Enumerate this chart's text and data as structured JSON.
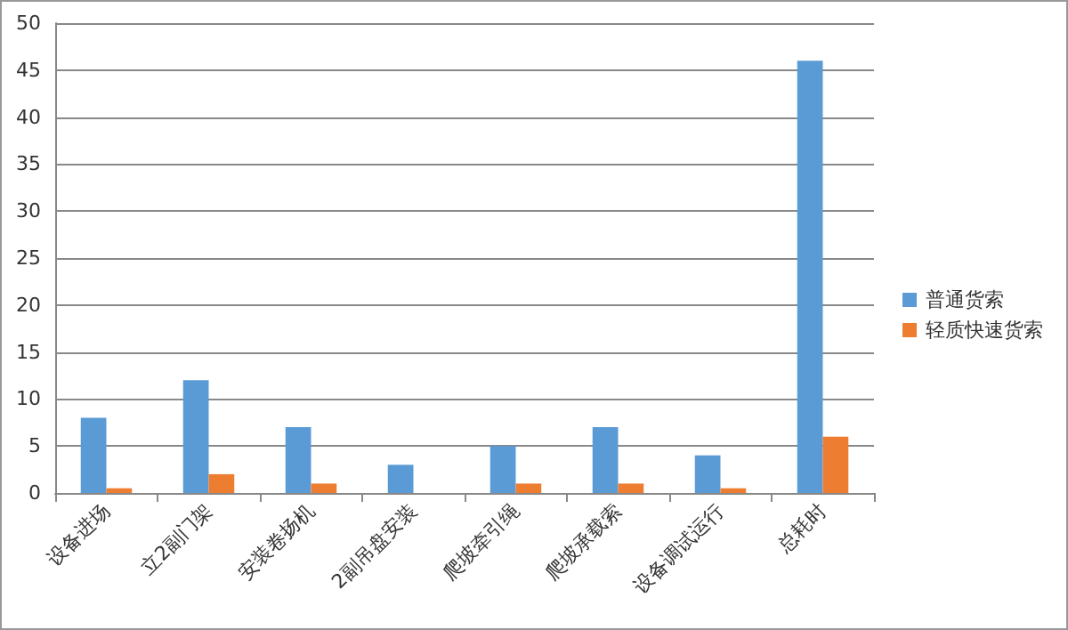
{
  "chart_data": {
    "type": "bar",
    "categories": [
      "设备进场",
      "立2副门架",
      "安装卷扬机",
      "2副吊盘安装",
      "爬坡牵引绳",
      "爬坡承载索",
      "设备调试运行",
      "总耗时"
    ],
    "series": [
      {
        "name": "普通货索",
        "color": "#5b9bd5",
        "values": [
          8,
          12,
          7,
          3,
          5,
          7,
          4,
          46
        ]
      },
      {
        "name": "轻质快速货索",
        "color": "#ed7d31",
        "values": [
          0.5,
          2,
          1,
          0,
          1,
          1,
          0.5,
          6
        ]
      }
    ],
    "ylim": [
      0,
      50
    ],
    "yticks": [
      0,
      5,
      10,
      15,
      20,
      25,
      30,
      35,
      40,
      45,
      50
    ],
    "grid": "y",
    "legend": "right"
  }
}
